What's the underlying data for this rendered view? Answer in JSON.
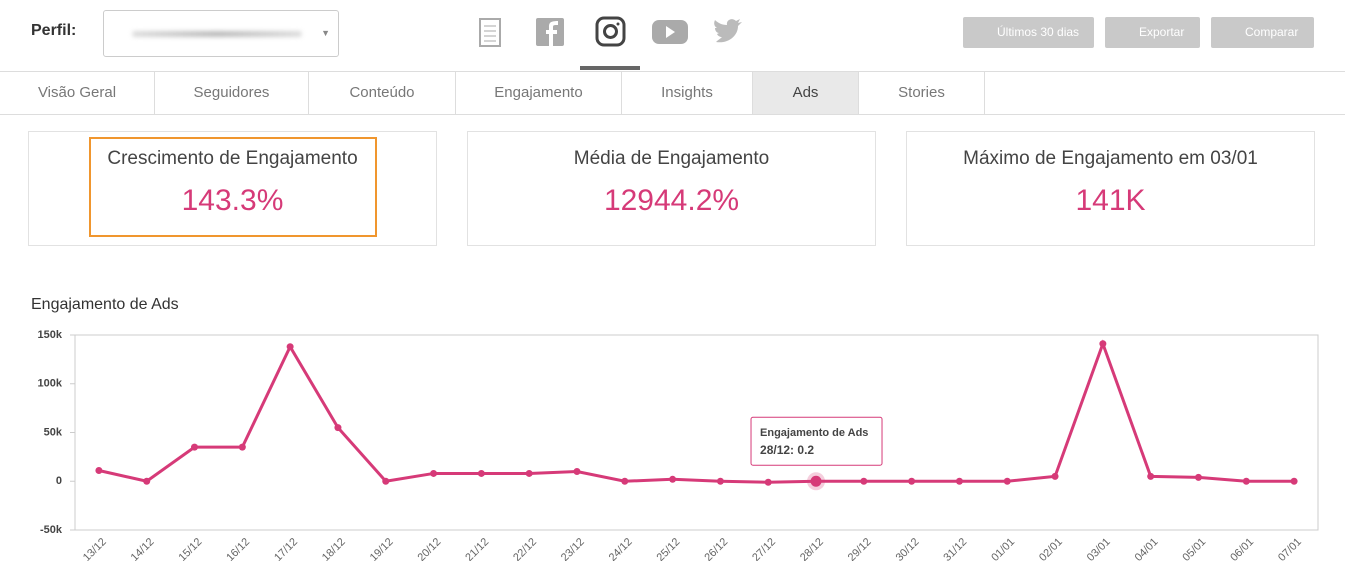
{
  "header": {
    "profile_label": "Perfil:",
    "buttons": [
      "Últimos 30 dias",
      "Exportar",
      "Comparar"
    ]
  },
  "tabs": {
    "items": [
      "Visão Geral",
      "Seguidores",
      "Conteúdo",
      "Engajamento",
      "Insights",
      "Ads",
      "Stories"
    ],
    "active": "Ads"
  },
  "cards": [
    {
      "title": "Crescimento de Engajamento",
      "value": "143.3%"
    },
    {
      "title": "Média de Engajamento",
      "value": "12944.2%"
    },
    {
      "title": "Máximo de Engajamento em 03/01",
      "value": "141K"
    }
  ],
  "chart_data": {
    "type": "line",
    "title": "Engajamento de Ads",
    "categories": [
      "13/12",
      "14/12",
      "15/12",
      "16/12",
      "17/12",
      "18/12",
      "19/12",
      "20/12",
      "21/12",
      "22/12",
      "23/12",
      "24/12",
      "25/12",
      "26/12",
      "27/12",
      "28/12",
      "29/12",
      "30/12",
      "31/12",
      "01/01",
      "02/01",
      "03/01",
      "04/01",
      "05/01",
      "06/01",
      "07/01"
    ],
    "series": [
      {
        "name": "Engajamento de Ads",
        "color": "#d63a78",
        "values": [
          11000,
          0,
          35000,
          35000,
          138000,
          55000,
          0,
          8000,
          8000,
          8000,
          10000,
          0,
          2000,
          0,
          -1000,
          0.2,
          0,
          0,
          0,
          0,
          5000,
          141000,
          5000,
          4000,
          0,
          0
        ]
      }
    ],
    "ylim": [
      -50000,
      150000
    ],
    "yticks": [
      {
        "value": -50000,
        "label": "-50k"
      },
      0,
      {
        "value": 50000,
        "label": "50k"
      },
      {
        "value": 100000,
        "label": "100k"
      },
      {
        "value": 150000,
        "label": "150k"
      }
    ],
    "tooltip_index": 15
  }
}
